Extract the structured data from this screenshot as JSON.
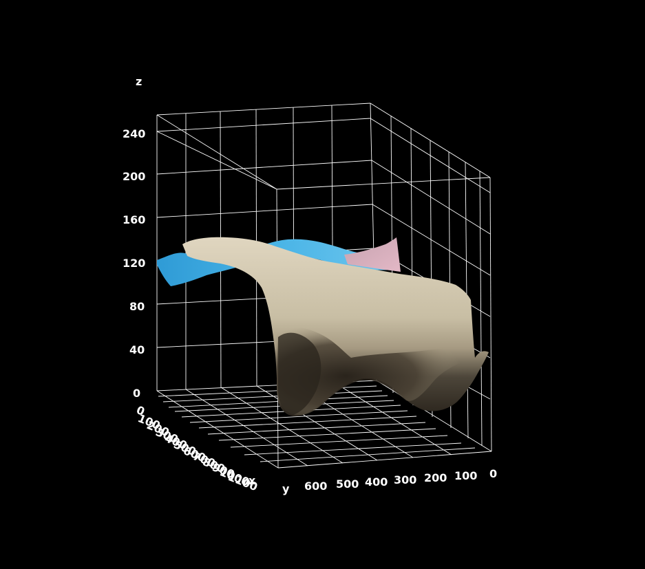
{
  "chart_data": {
    "type": "surface",
    "title": "",
    "axes": {
      "x": {
        "label": "x",
        "ticks": [
          "0",
          "100",
          "200",
          "300",
          "400",
          "500",
          "600",
          "700",
          "800",
          "900",
          "1000",
          "1100"
        ]
      },
      "y": {
        "label": "y",
        "ticks": [
          "600",
          "500",
          "400",
          "300",
          "200",
          "100",
          "0"
        ]
      },
      "z": {
        "label": "z",
        "ticks": [
          "0",
          "40",
          "80",
          "120",
          "160",
          "200",
          "240"
        ],
        "range": [
          0,
          240
        ]
      }
    },
    "grid": true,
    "background": "#000000",
    "surfaces": [
      {
        "color": "#3aa7dc"
      },
      {
        "color": "#c9b9a4"
      },
      {
        "color": "#d2aab8"
      }
    ]
  }
}
